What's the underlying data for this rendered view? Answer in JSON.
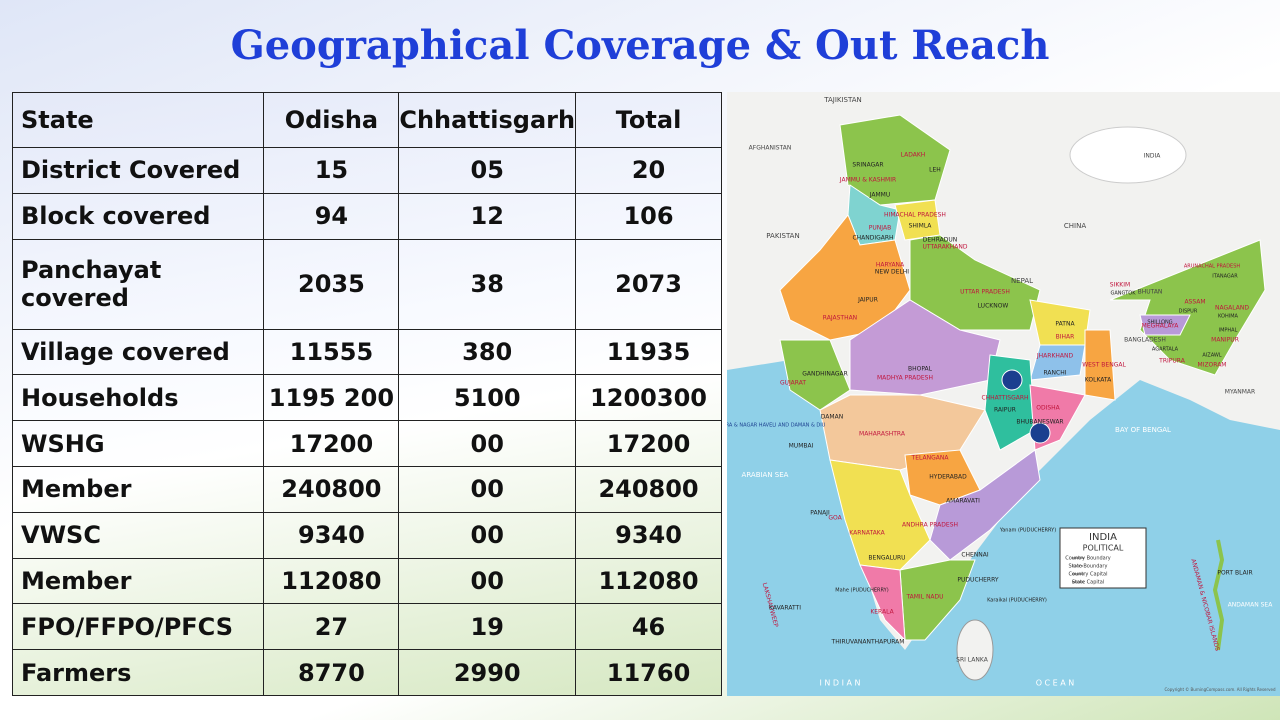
{
  "header": {
    "title": "Geographical Coverage & Out Reach"
  },
  "table": {
    "columns": [
      "State",
      "Odisha",
      "Chhattisgarh",
      "Total"
    ],
    "rows": [
      [
        "District Covered",
        "15",
        "05",
        "20"
      ],
      [
        "Block covered",
        "94",
        "12",
        "106"
      ],
      [
        "Panchayat covered",
        "2035",
        "38",
        "2073"
      ],
      [
        "Village covered",
        "11555",
        "380",
        "11935"
      ],
      [
        "Households",
        "1195 200",
        "5100",
        "1200300"
      ],
      [
        "WSHG",
        "17200",
        "00",
        "17200"
      ],
      [
        "Member",
        "240800",
        "00",
        "240800"
      ],
      [
        "VWSC",
        "9340",
        "00",
        "9340"
      ],
      [
        "Member",
        "112080",
        "00",
        "112080"
      ],
      [
        "FPO/FFPO/PFCS",
        "27",
        "19",
        "46"
      ],
      [
        "Farmers",
        "8770",
        "2990",
        "11760"
      ]
    ]
  },
  "map": {
    "labels": [
      "TAJIKISTAN",
      "AFGHANISTAN",
      "PAKISTAN",
      "CHINA",
      "NEPAL",
      "BHUTAN",
      "BANGLADESH",
      "MYANMAR",
      "SRI LANKA",
      "ARABIAN SEA",
      "BAY OF BENGAL",
      "I N D I A N",
      "O C E A N",
      "ANDAMAN SEA",
      "LADAKH",
      "JAMMU & KASHMIR",
      "HIMACHAL PRADESH",
      "PUNJAB",
      "HARYANA",
      "UTTARAKHAND",
      "UTTAR PRADESH",
      "RAJASTHAN",
      "GUJARAT",
      "MADHYA PRADESH",
      "BIHAR",
      "JHARKHAND",
      "WEST BENGAL",
      "SIKKIM",
      "ASSAM",
      "ARUNACHAL PRADESH",
      "NAGALAND",
      "MEGHALAYA",
      "TRIPURA",
      "MIZORAM",
      "MANIPUR",
      "CHHATTISGARH",
      "ODISHA",
      "MAHARASHTRA",
      "TELANGANA",
      "ANDHRA PRADESH",
      "KARNATAKA",
      "GOA",
      "KERALA",
      "TAMIL NADU",
      "LAKSHADWEEP",
      "ANDAMAN & NICOBAR ISLANDS",
      "DADRA & NAGAR HAVELI AND DAMAN & DIU",
      "SRINAGAR",
      "LEH",
      "JAMMU",
      "SHIMLA",
      "CHANDIGARH",
      "DEHRADUN",
      "NEW DELHI",
      "JAIPUR",
      "LUCKNOW",
      "PATNA",
      "RANCHI",
      "KOLKATA",
      "GANGTOK",
      "ITANAGAR",
      "DISPUR",
      "KOHIMA",
      "SHILLONG",
      "IMPHAL",
      "AGARTALA",
      "AIZAWL",
      "BHOPAL",
      "GANDHINAGAR",
      "DAMAN",
      "MUMBAI",
      "RAIPUR",
      "BHUBANESWAR",
      "HYDERABAD",
      "AMARAVATI",
      "Yanam (PUDUCHERRY)",
      "PANAJI",
      "BENGALURU",
      "CHENNAI",
      "PUDUCHERRY",
      "Mahe (PUDUCHERRY)",
      "Karaikal (PUDUCHERRY)",
      "KAVARATTI",
      "THIRUVANANTHAPURAM",
      "PORT BLAIR",
      "INDIA"
    ],
    "legend": {
      "title": "INDIA",
      "subtitle": "POLITICAL",
      "items": [
        "Country Boundary",
        "State Boundary",
        "Country Capital",
        "State Capital"
      ]
    },
    "copyright": "Copyright © BurningCompass.com. All Rights Reserved"
  }
}
